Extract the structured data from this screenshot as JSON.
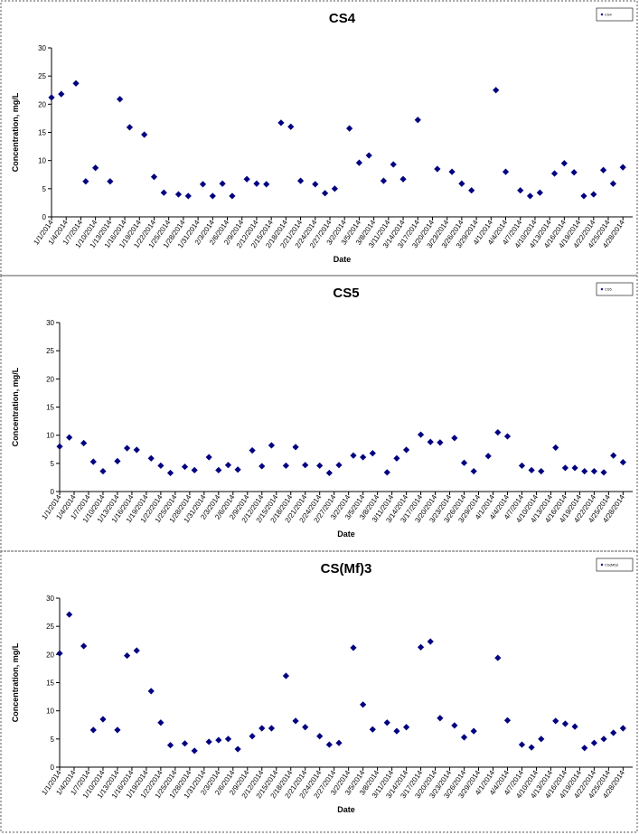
{
  "chart_data": [
    {
      "type": "scatter",
      "title": "CS4",
      "xlabel": "Date",
      "ylabel": "Concentration, mg/L",
      "x": [
        "1/1/2014",
        "1/3/2014",
        "1/6/2014",
        "1/8/2014",
        "1/10/2014",
        "1/13/2014",
        "1/15/2014",
        "1/17/2014",
        "1/20/2014",
        "1/22/2014",
        "1/24/2014",
        "1/27/2014",
        "1/29/2014",
        "2/1/2014",
        "2/3/2014",
        "2/5/2014",
        "2/7/2014",
        "2/10/2014",
        "2/12/2014",
        "2/14/2014",
        "2/17/2014",
        "2/19/2014",
        "2/21/2014",
        "2/24/2014",
        "2/26/2014",
        "2/28/2014",
        "3/3/2014",
        "3/5/2014",
        "3/7/2014",
        "3/10/2014",
        "3/12/2014",
        "3/14/2014",
        "3/17/2014",
        "3/21/2014",
        "3/24/2014",
        "3/26/2014",
        "3/28/2014",
        "4/2/2014",
        "4/4/2014",
        "4/7/2014",
        "4/9/2014",
        "4/11/2014",
        "4/14/2014",
        "4/16/2014",
        "4/18/2014",
        "4/20/2014",
        "4/22/2014",
        "4/24/2014",
        "4/26/2014",
        "4/28/2014"
      ],
      "series": [
        {
          "name": "CS4",
          "color": "#000080",
          "values": [
            21.2,
            21.8,
            23.7,
            6.3,
            8.7,
            6.3,
            20.9,
            15.9,
            14.6,
            7.1,
            4.3,
            4.0,
            3.7,
            5.8,
            3.7,
            5.9,
            3.7,
            6.7,
            5.9,
            5.8,
            16.7,
            16.0,
            6.4,
            5.8,
            4.2,
            5.0,
            15.7,
            9.6,
            10.9,
            6.4,
            9.3,
            6.7,
            17.2,
            8.5,
            8.0,
            5.9,
            4.7,
            22.5,
            8.0,
            4.7,
            3.7,
            4.3,
            7.7,
            9.5,
            7.9,
            3.7,
            4.0,
            8.3,
            5.9,
            8.8
          ]
        }
      ],
      "xlim": [
        "1/1/2014",
        "4/30/2014"
      ],
      "xticks": [
        "1/1/2014",
        "1/4/2014",
        "1/7/2014",
        "1/10/2014",
        "1/13/2014",
        "1/16/2014",
        "1/19/2014",
        "1/22/2014",
        "1/25/2014",
        "1/28/2014",
        "1/31/2014",
        "2/3/2014",
        "2/6/2014",
        "2/9/2014",
        "2/12/2014",
        "2/15/2014",
        "2/18/2014",
        "2/21/2014",
        "2/24/2014",
        "2/27/2014",
        "3/2/2014",
        "3/5/2014",
        "3/8/2014",
        "3/11/2014",
        "3/14/2014",
        "3/17/2014",
        "3/20/2014",
        "3/23/2014",
        "3/26/2014",
        "3/29/2014",
        "4/1/2014",
        "4/4/2014",
        "4/7/2014",
        "4/10/2014",
        "4/13/2014",
        "4/16/2014",
        "4/19/2014",
        "4/22/2014",
        "4/25/2014",
        "4/28/2014"
      ],
      "ylim": [
        0,
        30
      ],
      "yticks": [
        0,
        5,
        10,
        15,
        20,
        25,
        30
      ],
      "legend": "upper right"
    },
    {
      "type": "scatter",
      "title": "CS5",
      "xlabel": "Date",
      "ylabel": "Concentration, mg/L",
      "x": [
        "1/1/2014",
        "1/3/2014",
        "1/6/2014",
        "1/8/2014",
        "1/10/2014",
        "1/13/2014",
        "1/15/2014",
        "1/17/2014",
        "1/20/2014",
        "1/22/2014",
        "1/24/2014",
        "1/27/2014",
        "1/29/2014",
        "2/1/2014",
        "2/3/2014",
        "2/5/2014",
        "2/7/2014",
        "2/10/2014",
        "2/12/2014",
        "2/14/2014",
        "2/17/2014",
        "2/19/2014",
        "2/21/2014",
        "2/24/2014",
        "2/26/2014",
        "2/28/2014",
        "3/3/2014",
        "3/5/2014",
        "3/7/2014",
        "3/10/2014",
        "3/12/2014",
        "3/14/2014",
        "3/17/2014",
        "3/19/2014",
        "3/21/2014",
        "3/24/2014",
        "3/26/2014",
        "3/28/2014",
        "3/31/2014",
        "4/2/2014",
        "4/4/2014",
        "4/7/2014",
        "4/9/2014",
        "4/11/2014",
        "4/14/2014",
        "4/16/2014",
        "4/18/2014",
        "4/20/2014",
        "4/22/2014",
        "4/24/2014",
        "4/26/2014",
        "4/28/2014"
      ],
      "series": [
        {
          "name": "CS5",
          "color": "#000080",
          "values": [
            8.0,
            9.6,
            8.6,
            5.3,
            3.6,
            5.4,
            7.7,
            7.4,
            5.9,
            4.6,
            3.3,
            4.4,
            3.8,
            6.1,
            3.8,
            4.7,
            3.9,
            7.3,
            4.5,
            8.2,
            4.6,
            7.9,
            4.7,
            4.6,
            3.3,
            4.7,
            6.4,
            6.1,
            6.8,
            3.4,
            5.9,
            7.4,
            10.1,
            8.8,
            8.7,
            9.5,
            5.1,
            3.6,
            6.3,
            10.5,
            9.8,
            4.6,
            3.8,
            3.6,
            7.8,
            4.2,
            4.2,
            3.6,
            3.6,
            3.4,
            6.4,
            5.2
          ]
        }
      ],
      "xlim": [
        "1/1/2014",
        "4/30/2014"
      ],
      "xticks": [
        "1/1/2014",
        "1/4/2014",
        "1/7/2014",
        "1/10/2014",
        "1/13/2014",
        "1/16/2014",
        "1/19/2014",
        "1/22/2014",
        "1/25/2014",
        "1/28/2014",
        "1/31/2014",
        "2/3/2014",
        "2/6/2014",
        "2/9/2014",
        "2/12/2014",
        "2/15/2014",
        "2/18/2014",
        "2/21/2014",
        "2/24/2014",
        "2/27/2014",
        "3/2/2014",
        "3/5/2014",
        "3/8/2014",
        "3/11/2014",
        "3/14/2014",
        "3/17/2014",
        "3/20/2014",
        "3/23/2014",
        "3/26/2014",
        "3/29/2014",
        "4/1/2014",
        "4/4/2014",
        "4/7/2014",
        "4/10/2014",
        "4/13/2014",
        "4/16/2014",
        "4/19/2014",
        "4/22/2014",
        "4/25/2014",
        "4/28/2014"
      ],
      "ylim": [
        0,
        30
      ],
      "yticks": [
        0,
        5,
        10,
        15,
        20,
        25,
        30
      ],
      "legend": "upper right"
    },
    {
      "type": "scatter",
      "title": "CS(Mf)3",
      "xlabel": "Date",
      "ylabel": "Concentration, mg/L",
      "x": [
        "1/1/2014",
        "1/3/2014",
        "1/6/2014",
        "1/8/2014",
        "1/10/2014",
        "1/13/2014",
        "1/15/2014",
        "1/17/2014",
        "1/20/2014",
        "1/22/2014",
        "1/24/2014",
        "1/27/2014",
        "1/29/2014",
        "2/1/2014",
        "2/3/2014",
        "2/5/2014",
        "2/7/2014",
        "2/10/2014",
        "2/12/2014",
        "2/14/2014",
        "2/17/2014",
        "2/19/2014",
        "2/21/2014",
        "2/24/2014",
        "2/26/2014",
        "2/28/2014",
        "3/3/2014",
        "3/5/2014",
        "3/7/2014",
        "3/10/2014",
        "3/12/2014",
        "3/14/2014",
        "3/17/2014",
        "3/19/2014",
        "3/21/2014",
        "3/24/2014",
        "3/26/2014",
        "3/28/2014",
        "4/2/2014",
        "4/4/2014",
        "4/7/2014",
        "4/9/2014",
        "4/11/2014",
        "4/14/2014",
        "4/16/2014",
        "4/18/2014",
        "4/20/2014",
        "4/22/2014",
        "4/24/2014",
        "4/26/2014",
        "4/28/2014"
      ],
      "series": [
        {
          "name": "CS(Mf)3",
          "color": "#000080",
          "values": [
            20.2,
            27.1,
            21.5,
            6.6,
            8.5,
            6.6,
            19.8,
            20.7,
            13.5,
            7.9,
            3.9,
            4.2,
            2.9,
            4.5,
            4.8,
            5.0,
            3.2,
            5.5,
            6.9,
            6.9,
            16.2,
            8.2,
            7.1,
            5.5,
            4.0,
            4.3,
            21.2,
            11.1,
            6.7,
            7.9,
            6.4,
            7.1,
            21.3,
            22.3,
            8.7,
            7.4,
            5.3,
            6.4,
            19.4,
            8.3,
            4.0,
            3.5,
            5.0,
            8.2,
            7.7,
            7.2,
            3.4,
            4.3,
            5.0,
            6.1,
            6.9
          ]
        }
      ],
      "xlim": [
        "1/1/2014",
        "4/30/2014"
      ],
      "xticks": [
        "1/1/2014",
        "1/4/2014",
        "1/7/2014",
        "1/10/2014",
        "1/13/2014",
        "1/16/2014",
        "1/19/2014",
        "1/22/2014",
        "1/25/2014",
        "1/28/2014",
        "1/31/2014",
        "2/3/2014",
        "2/6/2014",
        "2/9/2014",
        "2/12/2014",
        "2/15/2014",
        "2/18/2014",
        "2/21/2014",
        "2/24/2014",
        "2/27/2014",
        "3/2/2014",
        "3/5/2014",
        "3/8/2014",
        "3/11/2014",
        "3/14/2014",
        "3/17/2014",
        "3/20/2014",
        "3/23/2014",
        "3/26/2014",
        "3/29/2014",
        "4/1/2014",
        "4/4/2014",
        "4/7/2014",
        "4/10/2014",
        "4/13/2014",
        "4/16/2014",
        "4/19/2014",
        "4/22/2014",
        "4/25/2014",
        "4/28/2014"
      ],
      "ylim": [
        0,
        30
      ],
      "yticks": [
        0,
        5,
        10,
        15,
        20,
        25,
        30
      ],
      "legend": "upper right"
    }
  ]
}
